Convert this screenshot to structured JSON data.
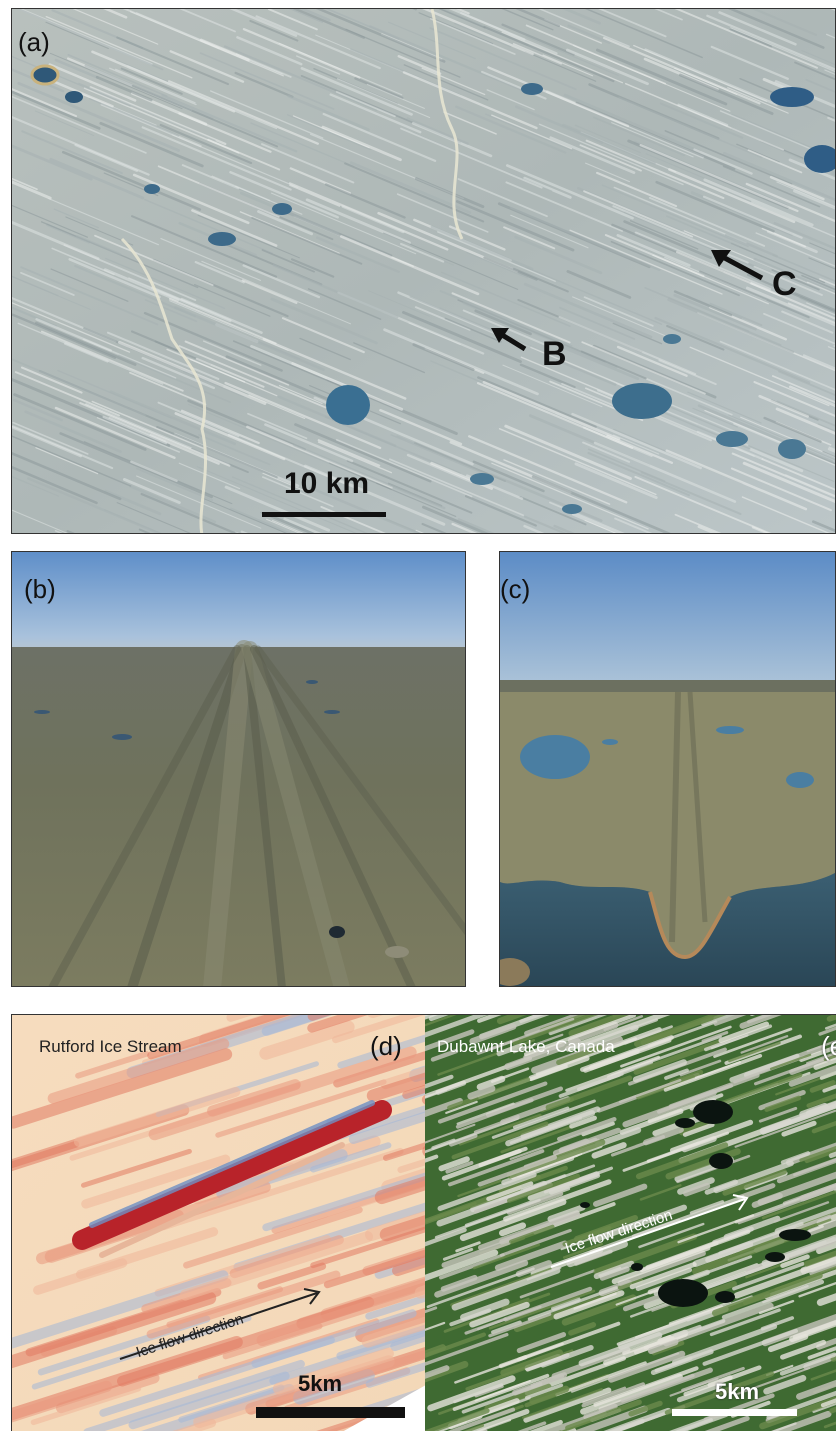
{
  "panels": {
    "a": {
      "label": "(a)",
      "scale": "10 km",
      "arrows": [
        {
          "label": "B"
        },
        {
          "label": "C"
        }
      ]
    },
    "b": {
      "label": "(b)"
    },
    "c": {
      "label": "(c)"
    },
    "d": {
      "label": "(d)",
      "title": "Rutford Ice Stream",
      "flow": "Ice flow direction",
      "scale": "5km"
    },
    "e": {
      "label": "(e)",
      "title": "Dubawnt Lake, Canada",
      "flow": "Ice flow direction",
      "scale": "5km"
    }
  },
  "colors": {
    "satellite_ground": "#b9c2c3",
    "lake": "#2f5878",
    "sky": "#7fa6d0",
    "tundra": "#7f8368",
    "bathymetry_red": "#c8282a",
    "bathymetry_blue": "#6a8ec0",
    "bathymetry_base": "#f5ddc0",
    "forest_green": "#3f6a32"
  }
}
